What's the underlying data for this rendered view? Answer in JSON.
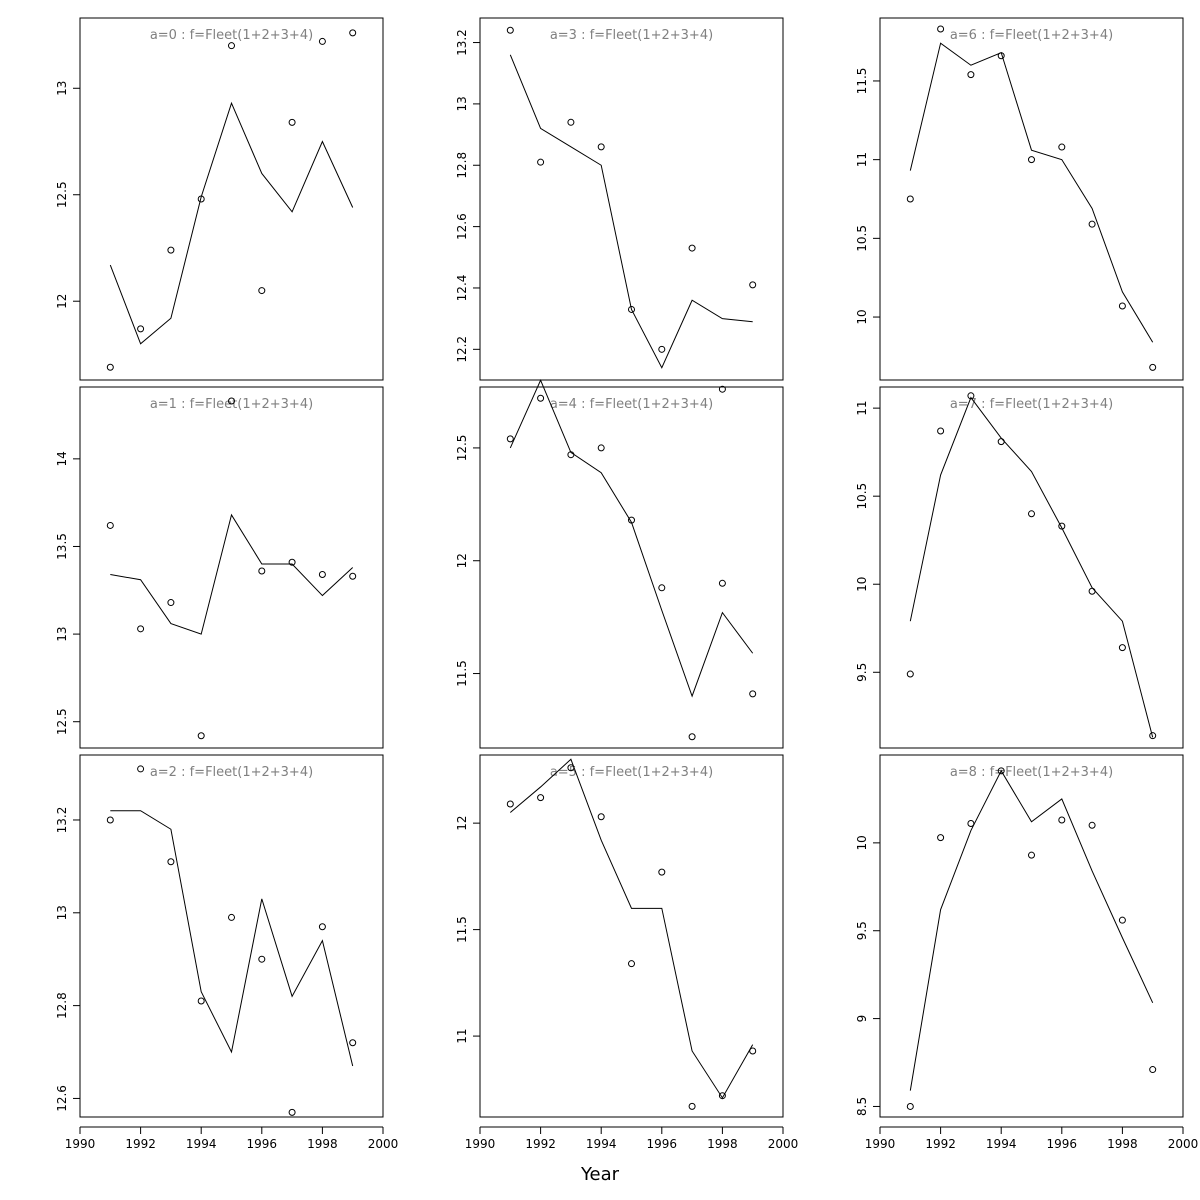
{
  "figure": {
    "xlabel": "Year"
  },
  "chart_data": [
    {
      "type": "line",
      "title": "a=0 : f=Fleet(1+2+3+4)",
      "xlim": [
        1990,
        2000
      ],
      "ylim": [
        11.63,
        13.33
      ],
      "x": [
        1991,
        1992,
        1993,
        1994,
        1995,
        1996,
        1997,
        1998,
        1999
      ],
      "yticks": [
        12.0,
        12.5,
        13.0
      ],
      "xticks": [],
      "series": [
        {
          "kind": "points",
          "values": [
            11.69,
            11.87,
            12.24,
            12.48,
            13.2,
            12.05,
            12.84,
            13.22,
            13.26
          ]
        },
        {
          "kind": "line",
          "values": [
            12.17,
            11.8,
            11.92,
            12.49,
            12.93,
            12.6,
            12.42,
            12.75,
            12.44
          ]
        }
      ]
    },
    {
      "type": "line",
      "title": "a=3 : f=Fleet(1+2+3+4)",
      "xlim": [
        1990,
        2000
      ],
      "ylim": [
        12.1,
        13.28
      ],
      "x": [
        1991,
        1992,
        1993,
        1994,
        1995,
        1996,
        1997,
        1998,
        1999
      ],
      "yticks": [
        12.2,
        12.4,
        12.6,
        12.8,
        13.0,
        13.2
      ],
      "xticks": [],
      "series": [
        {
          "kind": "points",
          "values": [
            13.24,
            12.81,
            12.94,
            12.86,
            12.33,
            12.2,
            12.53,
            12.07,
            12.41
          ]
        },
        {
          "kind": "line",
          "values": [
            13.16,
            12.92,
            12.86,
            12.8,
            12.33,
            12.14,
            12.36,
            12.3,
            12.29
          ]
        }
      ]
    },
    {
      "type": "line",
      "title": "a=6 : f=Fleet(1+2+3+4)",
      "xlim": [
        1990,
        2000
      ],
      "ylim": [
        9.6,
        11.9
      ],
      "x": [
        1991,
        1992,
        1993,
        1994,
        1995,
        1996,
        1997,
        1998,
        1999
      ],
      "yticks": [
        10.0,
        10.5,
        11.0,
        11.5
      ],
      "xticks": [],
      "series": [
        {
          "kind": "points",
          "values": [
            10.75,
            11.83,
            11.54,
            11.66,
            11.0,
            11.08,
            10.59,
            10.07,
            9.68
          ]
        },
        {
          "kind": "line",
          "values": [
            10.93,
            11.74,
            11.6,
            11.68,
            11.06,
            11.0,
            10.69,
            10.16,
            9.84
          ]
        }
      ]
    },
    {
      "type": "line",
      "title": "a=1 : f=Fleet(1+2+3+4)",
      "xlim": [
        1990,
        2000
      ],
      "ylim": [
        12.35,
        14.41
      ],
      "x": [
        1991,
        1992,
        1993,
        1994,
        1995,
        1996,
        1997,
        1998,
        1999
      ],
      "yticks": [
        12.5,
        13.0,
        13.5,
        14.0
      ],
      "xticks": [],
      "series": [
        {
          "kind": "points",
          "values": [
            13.62,
            13.03,
            13.18,
            12.42,
            14.33,
            13.36,
            13.41,
            13.34,
            13.33
          ]
        },
        {
          "kind": "line",
          "values": [
            13.34,
            13.31,
            13.06,
            13.0,
            13.68,
            13.4,
            13.4,
            13.22,
            13.38
          ]
        }
      ]
    },
    {
      "type": "line",
      "title": "a=4 : f=Fleet(1+2+3+4)",
      "xlim": [
        1990,
        2000
      ],
      "ylim": [
        11.17,
        12.77
      ],
      "x": [
        1991,
        1992,
        1993,
        1994,
        1995,
        1996,
        1997,
        1998,
        1999
      ],
      "yticks": [
        11.5,
        12.0,
        12.5
      ],
      "xticks": [],
      "series": [
        {
          "kind": "points",
          "values": [
            12.54,
            12.72,
            12.47,
            12.5,
            12.18,
            11.88,
            11.22,
            11.9,
            11.41
          ]
        },
        {
          "kind": "line",
          "values": [
            12.5,
            12.8,
            12.48,
            12.39,
            12.17,
            11.78,
            11.4,
            11.77,
            11.59
          ]
        }
      ]
    },
    {
      "type": "line",
      "title": "a=7 : f=Fleet(1+2+3+4)",
      "xlim": [
        1990,
        2000
      ],
      "ylim": [
        9.07,
        11.12
      ],
      "x": [
        1991,
        1992,
        1993,
        1994,
        1995,
        1996,
        1997,
        1998,
        1999
      ],
      "yticks": [
        9.5,
        10.0,
        10.5,
        11.0
      ],
      "xticks": [],
      "series": [
        {
          "kind": "points",
          "values": [
            9.49,
            10.87,
            11.07,
            10.81,
            10.4,
            10.33,
            9.96,
            9.64,
            9.14
          ]
        },
        {
          "kind": "line",
          "values": [
            9.79,
            10.62,
            11.06,
            10.83,
            10.64,
            10.32,
            9.98,
            9.79,
            9.13
          ]
        }
      ]
    },
    {
      "type": "line",
      "title": "a=2 : f=Fleet(1+2+3+4)",
      "xlim": [
        1990,
        2000
      ],
      "ylim": [
        12.56,
        13.34
      ],
      "x": [
        1991,
        1992,
        1993,
        1994,
        1995,
        1996,
        1997,
        1998,
        1999
      ],
      "yticks": [
        12.6,
        12.8,
        13.0,
        13.2
      ],
      "xticks": [
        1990,
        1992,
        1994,
        1996,
        1998,
        2000
      ],
      "series": [
        {
          "kind": "points",
          "values": [
            13.2,
            13.31,
            13.11,
            12.81,
            12.99,
            12.9,
            12.57,
            12.97,
            12.72
          ]
        },
        {
          "kind": "line",
          "values": [
            13.22,
            13.22,
            13.18,
            12.83,
            12.7,
            13.03,
            12.82,
            12.94,
            12.67
          ]
        }
      ]
    },
    {
      "type": "line",
      "title": "a=5 : f=Fleet(1+2+3+4)",
      "xlim": [
        1990,
        2000
      ],
      "ylim": [
        10.62,
        12.32
      ],
      "x": [
        1991,
        1992,
        1993,
        1994,
        1995,
        1996,
        1997,
        1998,
        1999
      ],
      "yticks": [
        11.0,
        11.5,
        12.0
      ],
      "xticks": [
        1990,
        1992,
        1994,
        1996,
        1998,
        2000
      ],
      "series": [
        {
          "kind": "points",
          "values": [
            12.09,
            12.12,
            12.26,
            12.03,
            11.34,
            11.77,
            10.67,
            10.72,
            10.93
          ]
        },
        {
          "kind": "line",
          "values": [
            12.05,
            12.17,
            12.3,
            11.92,
            11.6,
            11.6,
            10.93,
            10.71,
            10.96
          ]
        }
      ]
    },
    {
      "type": "line",
      "title": "a=8 : f=Fleet(1+2+3+4)",
      "xlim": [
        1990,
        2000
      ],
      "ylim": [
        8.44,
        10.5
      ],
      "x": [
        1991,
        1992,
        1993,
        1994,
        1995,
        1996,
        1997,
        1998,
        1999
      ],
      "yticks": [
        8.5,
        9.0,
        9.5,
        10.0
      ],
      "xticks": [
        1990,
        1992,
        1994,
        1996,
        1998,
        2000
      ],
      "series": [
        {
          "kind": "points",
          "values": [
            8.5,
            10.03,
            10.11,
            10.41,
            9.93,
            10.13,
            10.1,
            9.56,
            8.71
          ]
        },
        {
          "kind": "line",
          "values": [
            8.59,
            9.62,
            10.07,
            10.41,
            10.12,
            10.25,
            9.84,
            9.46,
            9.09
          ]
        }
      ]
    }
  ]
}
